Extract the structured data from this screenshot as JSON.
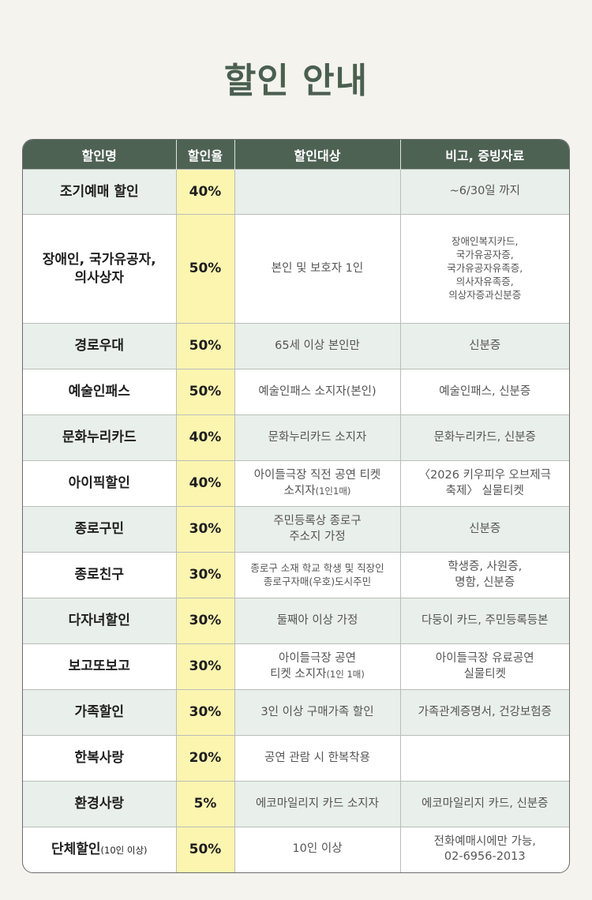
{
  "header": {
    "title": "할인 안내"
  },
  "table": {
    "columns": [
      "할인명",
      "할인율",
      "할인대상",
      "비고, 증빙자료"
    ],
    "rows": [
      {
        "name": "조기예매 할인",
        "rate": "40%",
        "target": null,
        "remark": "~6/30일 까지"
      },
      {
        "name": "장애인, 국가유공자,\n의사상자",
        "rate": "50%",
        "target": "본인 및 보호자 1인",
        "remark": "장애인복지카드,\n국가유공자증,\n국가유공자유족증,\n의사자유족증,\n의상자증과신분증"
      },
      {
        "name": "경로우대",
        "rate": "50%",
        "target": "65세 이상 본인만",
        "remark": "신분증"
      },
      {
        "name": "예술인패스",
        "rate": "50%",
        "target": "예술인패스 소지자(본인)",
        "remark": "예술인패스, 신분증"
      },
      {
        "name": "문화누리카드",
        "rate": "40%",
        "target": "문화누리카드 소지자",
        "remark": "문화누리카드, 신분증"
      },
      {
        "name": "아이픽할인",
        "rate": "40%",
        "target": "아이들극장 직전 공연 티켓\n소지자",
        "target_note": "(1인1매)",
        "remark": "〈2026 키우피우 오브제극\n축제〉 실물티켓"
      },
      {
        "name": "종로구민",
        "rate": "30%",
        "target": "주민등록상 종로구\n주소지 가정",
        "remark": "신분증"
      },
      {
        "name": "종로친구",
        "rate": "30%",
        "target": "종로구 소재 학교 학생 및 직장인\n종로구자매(우호)도시주민",
        "remark": "학생증, 사원증,\n명함, 신분증"
      },
      {
        "name": "다자녀할인",
        "rate": "30%",
        "target": "둘째아 이상 가정",
        "remark": "다둥이 카드, 주민등록등본"
      },
      {
        "name": "보고또보고",
        "rate": "30%",
        "target": "아이들극장 공연\n티켓 소지자",
        "target_note": "(1인 1매)",
        "remark": "아이들극장 유료공연\n실물티켓"
      },
      {
        "name": "가족할인",
        "rate": "30%",
        "target": "3인 이상 구매가족 할인",
        "remark": "가족관계증명서, 건강보험증"
      },
      {
        "name": "한복사랑",
        "rate": "20%",
        "target": "공연 관람 시 한복착용",
        "remark": null
      },
      {
        "name": "환경사랑",
        "rate": "5%",
        "target": "에코마일리지 카드 소지자",
        "remark": "에코마일리지 카드, 신분증"
      },
      {
        "name": "단체할인",
        "name_note": "(10인 이상)",
        "rate": "50%",
        "target": "10인 이상",
        "remark": "전화예매시에만 가능,\n02-6956-2013"
      }
    ]
  }
}
